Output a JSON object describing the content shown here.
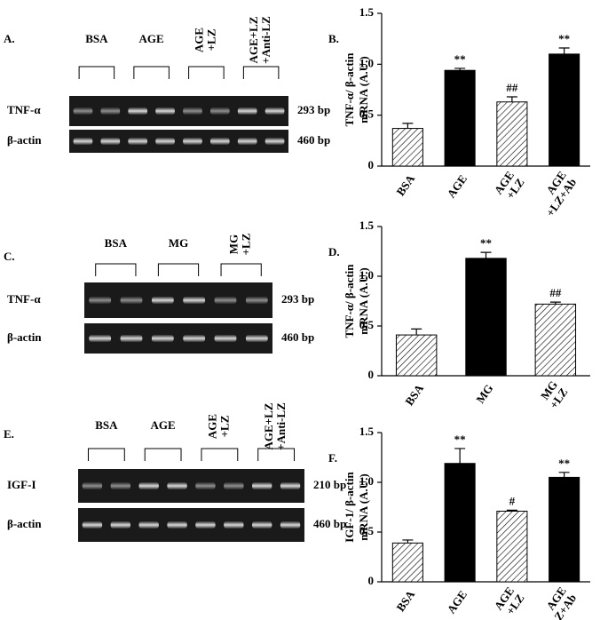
{
  "gels": [
    {
      "panel": "A.",
      "groups": [
        "BSA",
        "AGE",
        "AGE\n+LZ",
        "AGE+LZ\n+Anti-LZ"
      ],
      "rows": [
        {
          "name": "TNF-α",
          "size": "293 bp"
        },
        {
          "name": "β-actin",
          "size": "460 bp"
        }
      ]
    },
    {
      "panel": "C.",
      "groups": [
        "BSA",
        "MG",
        "MG\n+LZ"
      ],
      "rows": [
        {
          "name": "TNF-α",
          "size": "293 bp"
        },
        {
          "name": "β-actin",
          "size": "460 bp"
        }
      ]
    },
    {
      "panel": "E.",
      "groups": [
        "BSA",
        "AGE",
        "AGE\n+LZ",
        "AGE+LZ\n+Anti-LZ"
      ],
      "rows": [
        {
          "name": "IGF-I",
          "size": "210 bp"
        },
        {
          "name": "β-actin",
          "size": "460 bp"
        }
      ]
    }
  ],
  "chart_data": [
    {
      "type": "bar",
      "panel": "B.",
      "ylabel": [
        "TNF-α/ β-actin",
        "mRNA (A.U.)"
      ],
      "categories": [
        "BSA",
        "AGE",
        "AGE\n+LZ",
        "AGE\n+LZ+Ab"
      ],
      "series": [
        {
          "values": [
            0.37,
            0.94,
            0.63,
            1.1
          ],
          "errors": [
            0.05,
            0.02,
            0.05,
            0.06
          ],
          "fills": [
            "hatch",
            "black",
            "hatch",
            "black"
          ],
          "annotations": [
            null,
            "**",
            "##",
            "**"
          ]
        }
      ],
      "ylim": [
        0,
        1.5
      ],
      "yticks": [
        0,
        0.5,
        {
          "value": 1,
          "label": "1.0"
        },
        1.5
      ]
    },
    {
      "type": "bar",
      "panel": "D.",
      "ylabel": [
        "TNF-α/ β-actin",
        "mRNA (A.U.)"
      ],
      "categories": [
        "BSA",
        "MG",
        "MG\n+LZ"
      ],
      "series": [
        {
          "values": [
            0.41,
            1.18,
            0.72
          ],
          "errors": [
            0.06,
            0.06,
            0.02
          ],
          "fills": [
            "hatch",
            "black",
            "hatch"
          ],
          "annotations": [
            null,
            "**",
            "##"
          ]
        }
      ],
      "ylim": [
        0,
        1.5
      ],
      "yticks": [
        0,
        0.5,
        {
          "value": 1,
          "label": "1.0"
        },
        1.5
      ]
    },
    {
      "type": "bar",
      "panel": "F.",
      "ylabel": [
        "IGF-1/ β-actin",
        "mRNA (A.U.)"
      ],
      "categories": [
        "BSA",
        "AGE",
        "AGE\n+LZ",
        "AGE\n+LZ+Ab"
      ],
      "series": [
        {
          "values": [
            0.39,
            1.19,
            0.71,
            1.05
          ],
          "errors": [
            0.03,
            0.15,
            0.01,
            0.05
          ],
          "fills": [
            "hatch",
            "black",
            "hatch",
            "black"
          ],
          "annotations": [
            null,
            "**",
            "#",
            "**"
          ]
        }
      ],
      "ylim": [
        0,
        1.5
      ],
      "yticks": [
        0,
        0.5,
        {
          "value": 1,
          "label": "1.0"
        },
        1.5
      ]
    }
  ]
}
